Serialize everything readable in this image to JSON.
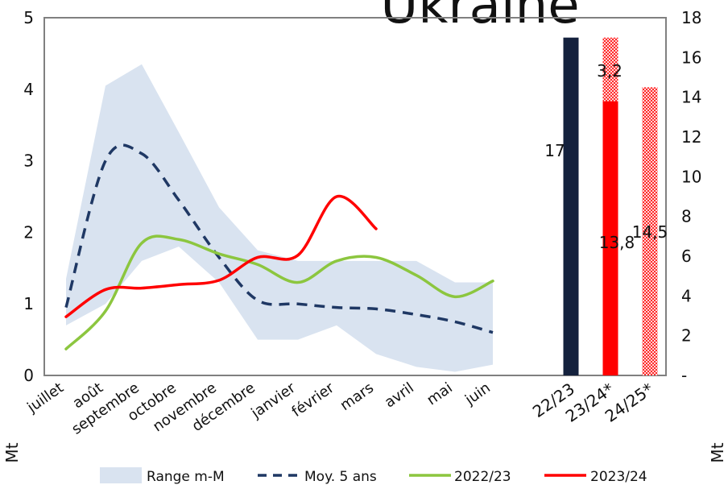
{
  "chart_data": {
    "type": "line",
    "title": "Ukraine",
    "left_axis": {
      "label": "Mt",
      "ylim": [
        0,
        5
      ],
      "ticks": [
        "0",
        "1",
        "2",
        "3",
        "4",
        "5"
      ]
    },
    "right_axis": {
      "label": "Mt",
      "ylim": [
        0,
        18
      ],
      "ticks": [
        "-",
        "2",
        "4",
        "6",
        "8",
        "10",
        "12",
        "14",
        "16",
        "18"
      ]
    },
    "categories": [
      "juillet",
      "août",
      "septembre",
      "octobre",
      "novembre",
      "décembre",
      "janvier",
      "février",
      "mars",
      "avril",
      "mai",
      "juin"
    ],
    "series": [
      {
        "name": "Range m-M",
        "kind": "band",
        "color": "#d9e3f0",
        "low": [
          0.7,
          1.0,
          1.6,
          1.8,
          1.3,
          0.5,
          0.5,
          0.7,
          0.3,
          0.12,
          0.05,
          0.15
        ],
        "high": [
          1.35,
          4.05,
          4.35,
          3.4,
          2.35,
          1.75,
          1.6,
          1.6,
          1.6,
          1.6,
          1.3,
          1.3
        ]
      },
      {
        "name": "Moy. 5 ans",
        "kind": "line",
        "style": "dashed",
        "color": "#1f3864",
        "values": [
          0.95,
          3.0,
          3.1,
          2.45,
          1.65,
          1.05,
          1.0,
          0.95,
          0.93,
          0.85,
          0.75,
          0.6
        ]
      },
      {
        "name": "2022/23",
        "kind": "line",
        "color": "#8cc63f",
        "values": [
          0.37,
          0.9,
          1.85,
          1.9,
          1.7,
          1.55,
          1.3,
          1.6,
          1.65,
          1.4,
          1.1,
          1.32
        ]
      },
      {
        "name": "2023/24",
        "kind": "line",
        "color": "#ff0000",
        "values": [
          0.82,
          1.2,
          1.22,
          1.27,
          1.33,
          1.65,
          1.68,
          2.5,
          2.05,
          null,
          null,
          null
        ]
      }
    ],
    "bars": {
      "axis": "right",
      "categories": [
        "22/23",
        "23/24*",
        "24/25*"
      ],
      "items": [
        {
          "label": "22/23",
          "segments": [
            {
              "value": 17,
              "label": "17",
              "color": "#14213d",
              "pattern": false
            }
          ]
        },
        {
          "label": "23/24*",
          "segments": [
            {
              "value": 13.8,
              "label": "13,8",
              "color": "#ff0000",
              "pattern": false
            },
            {
              "value": 3.2,
              "label": "3,2",
              "color": "#ff0000",
              "pattern": true
            }
          ]
        },
        {
          "label": "24/25*",
          "segments": [
            {
              "value": 14.5,
              "label": "14,5",
              "color": "#ff0000",
              "pattern": true
            }
          ]
        }
      ]
    },
    "legend": {
      "position": "bottom",
      "entries": [
        "Range m-M",
        "Moy. 5 ans",
        "2022/23",
        "2023/24"
      ]
    }
  }
}
